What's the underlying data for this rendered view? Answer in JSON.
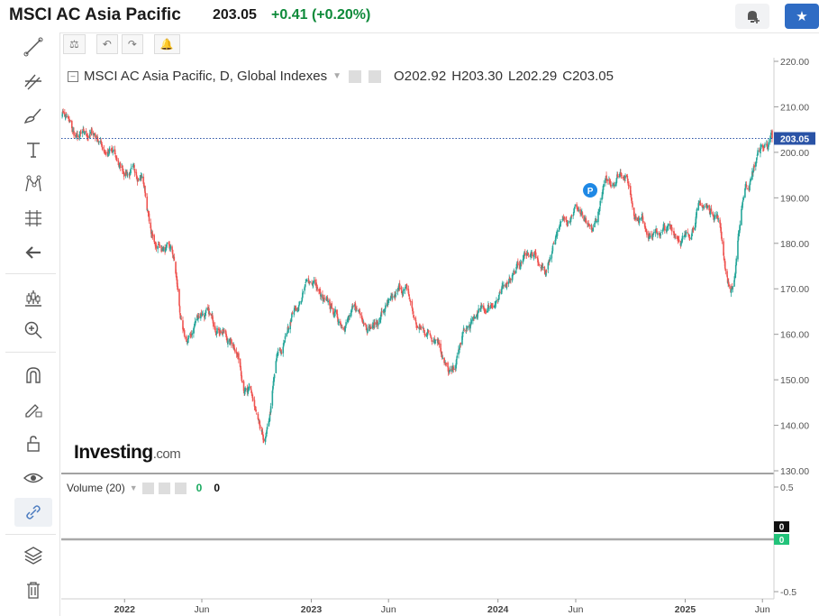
{
  "header": {
    "title": "MSCI AC Asia Pacific",
    "last": "203.05",
    "change": "+0.41",
    "change_pct": "(+0.20%)"
  },
  "legend": {
    "name": "MSCI AC Asia Pacific, D, Global Indexes",
    "open": "O202.92",
    "high": "H203.30",
    "low": "L202.29",
    "close": "C203.05"
  },
  "volume_legend": {
    "label": "Volume (20)",
    "value1": "0",
    "value2": "0"
  },
  "logo": {
    "main": "Investing",
    "suffix": ".com"
  },
  "price_tag": "203.05",
  "marker_label": "P",
  "sidebar_icons": [
    "trend-line-icon",
    "fib-icon",
    "brush-icon",
    "text-icon",
    "pattern-icon",
    "measure-icon",
    "back-arrow-icon",
    "indicators-icon",
    "zoom-icon",
    "magnet-icon",
    "lock-pencil-icon",
    "unlock-icon",
    "eye-icon",
    "link-icon",
    "layers-icon",
    "trash-icon"
  ],
  "colors": {
    "up": "#26a69a",
    "down": "#ef5350",
    "accent": "#2f6cc4",
    "positive": "#0e8a3a",
    "price_line": "#2a53a6"
  },
  "chart_data": {
    "type": "line",
    "title": "MSCI AC Asia Pacific, D, Global Indexes",
    "x_tick_labels": [
      "2022",
      "Jun",
      "2023",
      "Jun",
      "2024",
      "Jun",
      "2025",
      "Jun"
    ],
    "y_tick_labels": [
      "220.00",
      "210.00",
      "200.00",
      "190.00",
      "180.00",
      "170.00",
      "160.00",
      "150.00",
      "140.00",
      "130.00"
    ],
    "ylim": [
      130,
      220
    ],
    "volume_tick_labels": [
      "0.5",
      "0",
      "-0.5"
    ],
    "volume_ylim": [
      -0.5,
      0.5
    ],
    "series": [
      {
        "values_kind": "approximate daily close",
        "x": [
          "2021-09-01",
          "2021-10-01",
          "2021-11-01",
          "2021-12-01",
          "2022-01-01",
          "2022-02-01",
          "2022-03-01",
          "2022-04-01",
          "2022-05-01",
          "2022-06-01",
          "2022-07-01",
          "2022-08-01",
          "2022-09-01",
          "2022-10-01",
          "2022-11-01",
          "2022-12-01",
          "2023-01-01",
          "2023-02-01",
          "2023-03-01",
          "2023-04-01",
          "2023-05-01",
          "2023-06-01",
          "2023-07-01",
          "2023-08-01",
          "2023-09-01",
          "2023-10-01",
          "2023-11-01",
          "2023-12-01",
          "2024-01-01",
          "2024-02-01",
          "2024-03-01",
          "2024-04-01",
          "2024-05-01",
          "2024-06-01",
          "2024-07-01",
          "2024-08-01",
          "2024-09-01",
          "2024-10-01",
          "2024-11-01",
          "2024-12-01",
          "2025-01-01",
          "2025-02-01",
          "2025-03-01",
          "2025-04-01",
          "2025-05-01",
          "2025-06-01",
          "2025-06-20"
        ],
        "values": [
          209,
          203,
          204,
          200,
          196,
          195,
          180,
          178,
          158,
          165,
          162,
          158,
          147,
          136,
          156,
          166,
          172,
          166,
          163,
          165,
          162,
          166,
          170,
          161,
          160,
          151,
          161,
          165,
          168,
          174,
          178,
          174,
          184,
          188,
          182,
          193,
          196,
          186,
          182,
          183,
          181,
          188,
          187,
          170,
          193,
          201,
          203.05
        ]
      }
    ],
    "annotations": [
      {
        "label": "P",
        "x": "2024-07"
      }
    ],
    "last_price": 203.05
  }
}
